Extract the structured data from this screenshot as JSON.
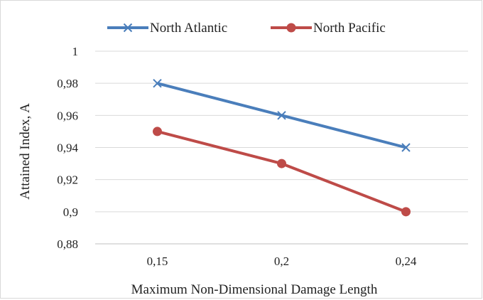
{
  "chart_data": {
    "type": "line",
    "categories": [
      "0,15",
      "0,2",
      "0,24"
    ],
    "series": [
      {
        "name": "North Atlantic",
        "values": [
          0.98,
          0.96,
          0.94
        ],
        "color": "#4a7ebb",
        "marker": "x"
      },
      {
        "name": "North Pacific",
        "values": [
          0.95,
          0.93,
          0.9
        ],
        "color": "#be4b48",
        "marker": "circle"
      }
    ],
    "title": "",
    "xlabel": "Maximum Non-Dimensional Damage Length",
    "ylabel": "Attained Index, A",
    "ylim": [
      0.88,
      1
    ],
    "yticks": [
      {
        "value": 1,
        "label": "1"
      },
      {
        "value": 0.98,
        "label": "0,98"
      },
      {
        "value": 0.96,
        "label": "0,96"
      },
      {
        "value": 0.94,
        "label": "0,94"
      },
      {
        "value": 0.92,
        "label": "0,92"
      },
      {
        "value": 0.9,
        "label": "0,9"
      },
      {
        "value": 0.88,
        "label": "0,88"
      }
    ],
    "grid": true,
    "legend_position": "top"
  }
}
